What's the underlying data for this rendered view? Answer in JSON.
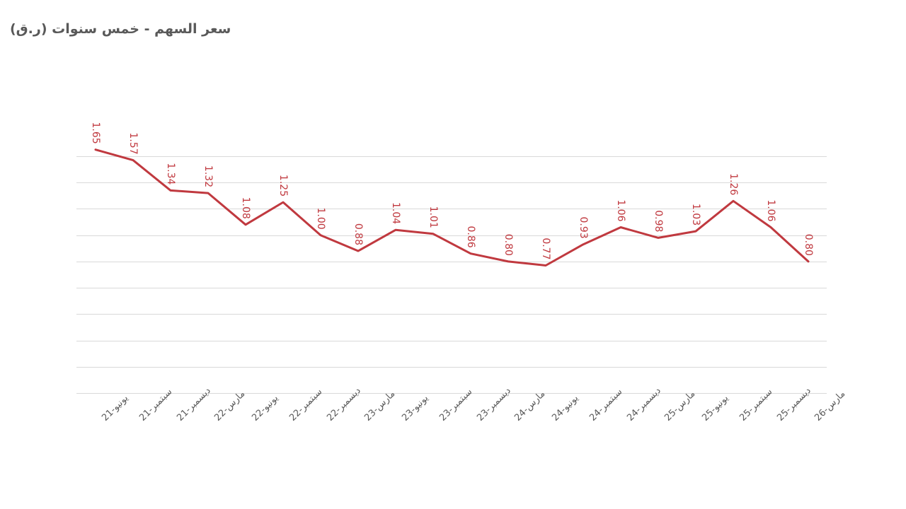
{
  "chart_data": {
    "type": "line",
    "title": "سعر السهم - خمس سنوات (ر.ق)",
    "xlabel": "",
    "ylabel": "",
    "ylim": [
      -0.2,
      1.6
    ],
    "grid": true,
    "categories": [
      "يونيو-21",
      "سبتمبر-21",
      "ديسمبر-21",
      "مارس-22",
      "يونيو-22",
      "سبتمبر-22",
      "ديسمبر-22",
      "مارس-23",
      "يونيو-23",
      "سبتمبر-23",
      "ديسمبر-23",
      "مارس-24",
      "يونيو-24",
      "سبتمبر-24",
      "ديسمبر-24",
      "مارس-25",
      "يونيو-25",
      "سبتمبر-25",
      "ديسمبر-25",
      "مارس-26"
    ],
    "series": [
      {
        "name": "سعر السهم",
        "color": "#c0393f",
        "values": [
          1.65,
          1.57,
          1.34,
          1.32,
          1.08,
          1.25,
          1.0,
          0.88,
          1.04,
          1.01,
          0.86,
          0.8,
          0.77,
          0.93,
          1.06,
          0.98,
          1.03,
          1.26,
          1.06,
          0.8
        ],
        "labels": [
          "1.65",
          "1.57",
          "1.34",
          "1.32",
          "1.08",
          "1.25",
          "1.00",
          "0.88",
          "1.04",
          "1.01",
          "0.86",
          "0.80",
          "0.77",
          "0.93",
          "1.06",
          "0.98",
          "1.03",
          "1.26",
          "1.06",
          "0.80"
        ]
      }
    ]
  }
}
